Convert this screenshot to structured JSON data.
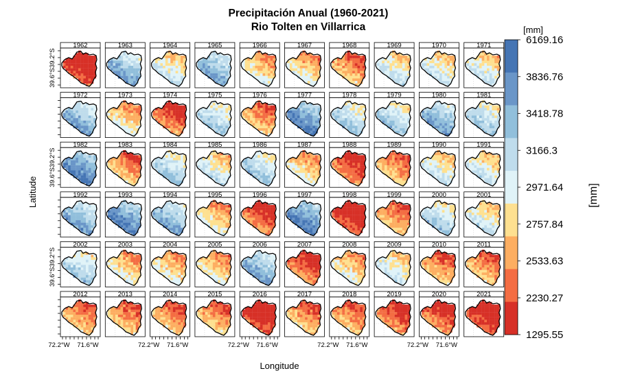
{
  "chart_data": {
    "type": "heatmap",
    "title": "Precipitación Anual (1960-2021)",
    "subtitle": "Rio Tolten en Villarrica",
    "xlabel": "Longitude",
    "ylabel": "Latitude",
    "x_ticks": [
      "72.2°W",
      "71.6°W"
    ],
    "y_ticks": [
      "39.6°S",
      "39.2°S"
    ],
    "legend": {
      "unit_top": "[mm]",
      "unit_side": "[mm]",
      "placement": "right",
      "breaks": [
        "6169.16",
        "3836.76",
        "3418.78",
        "3166.3",
        "2971.64",
        "2757.84",
        "2533.63",
        "2230.27",
        "1295.55"
      ],
      "colors": [
        "#4575b4",
        "#6a96c8",
        "#91bfdb",
        "#bfdcec",
        "#e0f3f8",
        "#fee090",
        "#fdae61",
        "#f46d43",
        "#d73027"
      ]
    },
    "panels": [
      {
        "year": "1962",
        "mean_class": 0
      },
      {
        "year": "1963",
        "mean_class": 6
      },
      {
        "year": "1964",
        "mean_class": 4
      },
      {
        "year": "1965",
        "mean_class": 6
      },
      {
        "year": "1966",
        "mean_class": 3
      },
      {
        "year": "1967",
        "mean_class": 3
      },
      {
        "year": "1968",
        "mean_class": 2
      },
      {
        "year": "1969",
        "mean_class": 4
      },
      {
        "year": "1970",
        "mean_class": 4
      },
      {
        "year": "1971",
        "mean_class": 4
      },
      {
        "year": "1972",
        "mean_class": 6
      },
      {
        "year": "1973",
        "mean_class": 3
      },
      {
        "year": "1974",
        "mean_class": 1
      },
      {
        "year": "1975",
        "mean_class": 5
      },
      {
        "year": "1976",
        "mean_class": 2
      },
      {
        "year": "1977",
        "mean_class": 7
      },
      {
        "year": "1978",
        "mean_class": 5
      },
      {
        "year": "1979",
        "mean_class": 5
      },
      {
        "year": "1980",
        "mean_class": 6
      },
      {
        "year": "1981",
        "mean_class": 5
      },
      {
        "year": "1982",
        "mean_class": 7
      },
      {
        "year": "1983",
        "mean_class": 2
      },
      {
        "year": "1984",
        "mean_class": 5
      },
      {
        "year": "1985",
        "mean_class": 4
      },
      {
        "year": "1986",
        "mean_class": 5
      },
      {
        "year": "1987",
        "mean_class": 3
      },
      {
        "year": "1988",
        "mean_class": 1
      },
      {
        "year": "1989",
        "mean_class": 2
      },
      {
        "year": "1990",
        "mean_class": 4
      },
      {
        "year": "1991",
        "mean_class": 4
      },
      {
        "year": "1992",
        "mean_class": 6
      },
      {
        "year": "1993",
        "mean_class": 7
      },
      {
        "year": "1994",
        "mean_class": 6
      },
      {
        "year": "1995",
        "mean_class": 3
      },
      {
        "year": "1996",
        "mean_class": 1
      },
      {
        "year": "1997",
        "mean_class": 7
      },
      {
        "year": "1998",
        "mean_class": 0
      },
      {
        "year": "1999",
        "mean_class": 2
      },
      {
        "year": "2000",
        "mean_class": 5
      },
      {
        "year": "2001",
        "mean_class": 4
      },
      {
        "year": "2002",
        "mean_class": 5
      },
      {
        "year": "2003",
        "mean_class": 3
      },
      {
        "year": "2004",
        "mean_class": 3
      },
      {
        "year": "2005",
        "mean_class": 3
      },
      {
        "year": "2006",
        "mean_class": 6
      },
      {
        "year": "2007",
        "mean_class": 1
      },
      {
        "year": "2008",
        "mean_class": 3
      },
      {
        "year": "2009",
        "mean_class": 4
      },
      {
        "year": "2010",
        "mean_class": 2
      },
      {
        "year": "2011",
        "mean_class": 2
      },
      {
        "year": "2012",
        "mean_class": 2
      },
      {
        "year": "2013",
        "mean_class": 2
      },
      {
        "year": "2014",
        "mean_class": 2
      },
      {
        "year": "2015",
        "mean_class": 2
      },
      {
        "year": "2016",
        "mean_class": 0
      },
      {
        "year": "2017",
        "mean_class": 2
      },
      {
        "year": "2018",
        "mean_class": 2
      },
      {
        "year": "2019",
        "mean_class": 1
      },
      {
        "year": "2020",
        "mean_class": 1
      },
      {
        "year": "2021",
        "mean_class": 0
      }
    ]
  }
}
